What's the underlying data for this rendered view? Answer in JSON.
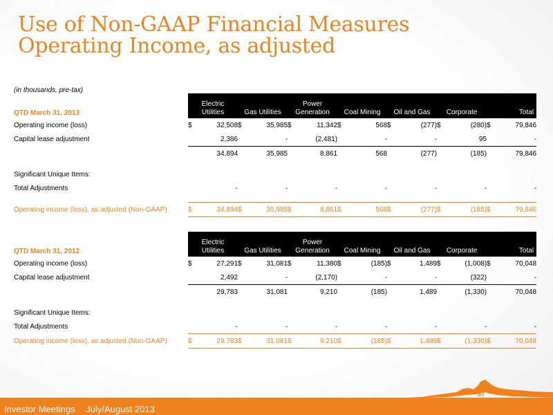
{
  "title": {
    "line1": "Use of Non-GAAP Financial Measures",
    "line2": "Operating Income, as adjusted"
  },
  "subtitle": "(in thousands, pre-tax)",
  "columns": [
    {
      "line1": "Electric",
      "line2": "Utilities"
    },
    {
      "line1": "",
      "line2": "Gas Utilities"
    },
    {
      "line1": "Power",
      "line2": "Generation"
    },
    {
      "line1": "",
      "line2": "Coal Mining"
    },
    {
      "line1": "",
      "line2": "Oil and Gas"
    },
    {
      "line1": "",
      "line2": "Corporate"
    },
    {
      "line1": "",
      "line2": "Total"
    }
  ],
  "currency_symbol": "$",
  "tables": [
    {
      "period": "QTD March 31, 2013",
      "rows": {
        "operating": {
          "label": "Operating income (loss)",
          "values": [
            "32,508",
            "35,985",
            "11,342",
            "568",
            "(277)",
            "(280)",
            "79,846"
          ]
        },
        "lease": {
          "label": "Capital lease adjustment",
          "values": [
            "2,386",
            "-",
            "(2,481)",
            "-",
            "-",
            "95",
            "-"
          ]
        },
        "subtotal": {
          "values": [
            "34,894",
            "35,985",
            "8,861",
            "568",
            "(277)",
            "(185)",
            "79,846"
          ]
        },
        "unique": {
          "label": "Significant Unique Items:"
        },
        "total_adj": {
          "label": "Total Adjustments",
          "values": [
            "-",
            "-",
            "-",
            "-",
            "-",
            "-",
            "-"
          ]
        },
        "adjusted": {
          "label": "Operating income (loss), as adjusted (Non-GAAP)",
          "values": [
            "34,894",
            "35,985",
            "8,861",
            "568",
            "(277)",
            "(185)",
            "79,846"
          ]
        }
      }
    },
    {
      "period": "QTD March 31, 2012",
      "rows": {
        "operating": {
          "label": "Operating income (loss)",
          "values": [
            "27,291",
            "31,081",
            "11,380",
            "(185)",
            "1,489",
            "(1,008)",
            "70,048"
          ]
        },
        "lease": {
          "label": "Capital lease adjustment",
          "values": [
            "2,492",
            "-",
            "(2,170)",
            "-",
            "-",
            "(322)",
            "-"
          ]
        },
        "subtotal": {
          "values": [
            "29,783",
            "31,081",
            "9,210",
            "(185)",
            "1,489",
            "(1,330)",
            "70,048"
          ]
        },
        "unique": {
          "label": "Significant Unique Items:"
        },
        "total_adj": {
          "label": "Total Adjustments",
          "values": [
            "-",
            "-",
            "-",
            "-",
            "-",
            "-",
            "-"
          ]
        },
        "adjusted": {
          "label": "Operating income (loss), as adjusted (Non-GAAP)",
          "values": [
            "29,783",
            "31,081",
            "9,210",
            "(185)",
            "1,489",
            "(1,330)",
            "70,048"
          ]
        }
      }
    }
  ],
  "footer": {
    "left": "Investor Meetings",
    "right": "July/August 2013",
    "page_number": "37"
  },
  "colors": {
    "accent": "#f0821e",
    "header_bg": "#000000"
  }
}
